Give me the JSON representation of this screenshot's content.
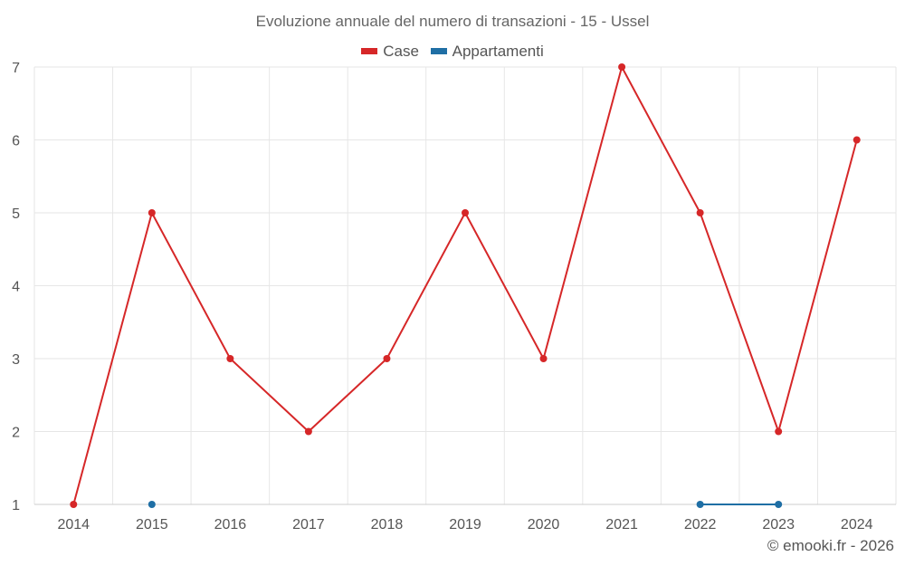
{
  "chart_data": {
    "type": "line",
    "title": "Evoluzione annuale del numero di transazioni - 15 - Ussel",
    "categories": [
      "2014",
      "2015",
      "2016",
      "2017",
      "2018",
      "2019",
      "2020",
      "2021",
      "2022",
      "2023",
      "2024"
    ],
    "ylim": [
      1,
      7
    ],
    "yticks": [
      1,
      2,
      3,
      4,
      5,
      6,
      7
    ],
    "grid": true,
    "legend_position": "top-center",
    "series": [
      {
        "name": "Case",
        "color": "#d62728",
        "values": [
          1,
          5,
          3,
          2,
          3,
          5,
          3,
          7,
          5,
          2,
          6
        ]
      },
      {
        "name": "Appartamenti",
        "color": "#1f6fa5",
        "values": [
          null,
          1,
          null,
          null,
          null,
          null,
          null,
          null,
          1,
          1,
          null
        ]
      }
    ]
  },
  "credit": "© emooki.fr - 2026"
}
